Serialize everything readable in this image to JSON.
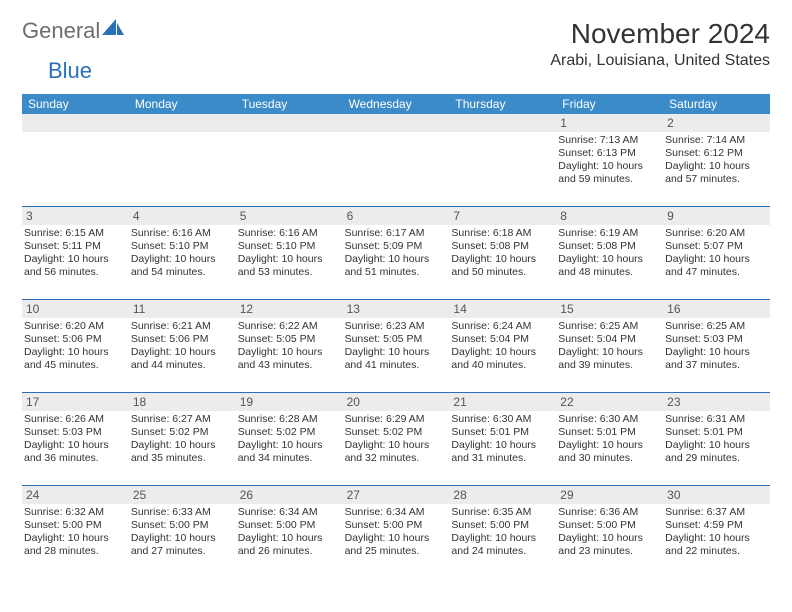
{
  "logo": {
    "text1": "General",
    "text2": "Blue"
  },
  "title": "November 2024",
  "location": "Arabi, Louisiana, United States",
  "colors": {
    "header_bg": "#3b8bc9",
    "header_text": "#ffffff",
    "week_border": "#2a70b8",
    "daynum_bg": "#ececec",
    "body_text": "#333333",
    "logo_gray": "#6e6e6e",
    "logo_blue": "#2a70b8",
    "page_bg": "#ffffff"
  },
  "weekdays": [
    "Sunday",
    "Monday",
    "Tuesday",
    "Wednesday",
    "Thursday",
    "Friday",
    "Saturday"
  ],
  "weeks": [
    [
      {
        "n": "",
        "sunrise": "",
        "sunset": "",
        "day1": "",
        "day2": ""
      },
      {
        "n": "",
        "sunrise": "",
        "sunset": "",
        "day1": "",
        "day2": ""
      },
      {
        "n": "",
        "sunrise": "",
        "sunset": "",
        "day1": "",
        "day2": ""
      },
      {
        "n": "",
        "sunrise": "",
        "sunset": "",
        "day1": "",
        "day2": ""
      },
      {
        "n": "",
        "sunrise": "",
        "sunset": "",
        "day1": "",
        "day2": ""
      },
      {
        "n": "1",
        "sunrise": "Sunrise: 7:13 AM",
        "sunset": "Sunset: 6:13 PM",
        "day1": "Daylight: 10 hours",
        "day2": "and 59 minutes."
      },
      {
        "n": "2",
        "sunrise": "Sunrise: 7:14 AM",
        "sunset": "Sunset: 6:12 PM",
        "day1": "Daylight: 10 hours",
        "day2": "and 57 minutes."
      }
    ],
    [
      {
        "n": "3",
        "sunrise": "Sunrise: 6:15 AM",
        "sunset": "Sunset: 5:11 PM",
        "day1": "Daylight: 10 hours",
        "day2": "and 56 minutes."
      },
      {
        "n": "4",
        "sunrise": "Sunrise: 6:16 AM",
        "sunset": "Sunset: 5:10 PM",
        "day1": "Daylight: 10 hours",
        "day2": "and 54 minutes."
      },
      {
        "n": "5",
        "sunrise": "Sunrise: 6:16 AM",
        "sunset": "Sunset: 5:10 PM",
        "day1": "Daylight: 10 hours",
        "day2": "and 53 minutes."
      },
      {
        "n": "6",
        "sunrise": "Sunrise: 6:17 AM",
        "sunset": "Sunset: 5:09 PM",
        "day1": "Daylight: 10 hours",
        "day2": "and 51 minutes."
      },
      {
        "n": "7",
        "sunrise": "Sunrise: 6:18 AM",
        "sunset": "Sunset: 5:08 PM",
        "day1": "Daylight: 10 hours",
        "day2": "and 50 minutes."
      },
      {
        "n": "8",
        "sunrise": "Sunrise: 6:19 AM",
        "sunset": "Sunset: 5:08 PM",
        "day1": "Daylight: 10 hours",
        "day2": "and 48 minutes."
      },
      {
        "n": "9",
        "sunrise": "Sunrise: 6:20 AM",
        "sunset": "Sunset: 5:07 PM",
        "day1": "Daylight: 10 hours",
        "day2": "and 47 minutes."
      }
    ],
    [
      {
        "n": "10",
        "sunrise": "Sunrise: 6:20 AM",
        "sunset": "Sunset: 5:06 PM",
        "day1": "Daylight: 10 hours",
        "day2": "and 45 minutes."
      },
      {
        "n": "11",
        "sunrise": "Sunrise: 6:21 AM",
        "sunset": "Sunset: 5:06 PM",
        "day1": "Daylight: 10 hours",
        "day2": "and 44 minutes."
      },
      {
        "n": "12",
        "sunrise": "Sunrise: 6:22 AM",
        "sunset": "Sunset: 5:05 PM",
        "day1": "Daylight: 10 hours",
        "day2": "and 43 minutes."
      },
      {
        "n": "13",
        "sunrise": "Sunrise: 6:23 AM",
        "sunset": "Sunset: 5:05 PM",
        "day1": "Daylight: 10 hours",
        "day2": "and 41 minutes."
      },
      {
        "n": "14",
        "sunrise": "Sunrise: 6:24 AM",
        "sunset": "Sunset: 5:04 PM",
        "day1": "Daylight: 10 hours",
        "day2": "and 40 minutes."
      },
      {
        "n": "15",
        "sunrise": "Sunrise: 6:25 AM",
        "sunset": "Sunset: 5:04 PM",
        "day1": "Daylight: 10 hours",
        "day2": "and 39 minutes."
      },
      {
        "n": "16",
        "sunrise": "Sunrise: 6:25 AM",
        "sunset": "Sunset: 5:03 PM",
        "day1": "Daylight: 10 hours",
        "day2": "and 37 minutes."
      }
    ],
    [
      {
        "n": "17",
        "sunrise": "Sunrise: 6:26 AM",
        "sunset": "Sunset: 5:03 PM",
        "day1": "Daylight: 10 hours",
        "day2": "and 36 minutes."
      },
      {
        "n": "18",
        "sunrise": "Sunrise: 6:27 AM",
        "sunset": "Sunset: 5:02 PM",
        "day1": "Daylight: 10 hours",
        "day2": "and 35 minutes."
      },
      {
        "n": "19",
        "sunrise": "Sunrise: 6:28 AM",
        "sunset": "Sunset: 5:02 PM",
        "day1": "Daylight: 10 hours",
        "day2": "and 34 minutes."
      },
      {
        "n": "20",
        "sunrise": "Sunrise: 6:29 AM",
        "sunset": "Sunset: 5:02 PM",
        "day1": "Daylight: 10 hours",
        "day2": "and 32 minutes."
      },
      {
        "n": "21",
        "sunrise": "Sunrise: 6:30 AM",
        "sunset": "Sunset: 5:01 PM",
        "day1": "Daylight: 10 hours",
        "day2": "and 31 minutes."
      },
      {
        "n": "22",
        "sunrise": "Sunrise: 6:30 AM",
        "sunset": "Sunset: 5:01 PM",
        "day1": "Daylight: 10 hours",
        "day2": "and 30 minutes."
      },
      {
        "n": "23",
        "sunrise": "Sunrise: 6:31 AM",
        "sunset": "Sunset: 5:01 PM",
        "day1": "Daylight: 10 hours",
        "day2": "and 29 minutes."
      }
    ],
    [
      {
        "n": "24",
        "sunrise": "Sunrise: 6:32 AM",
        "sunset": "Sunset: 5:00 PM",
        "day1": "Daylight: 10 hours",
        "day2": "and 28 minutes."
      },
      {
        "n": "25",
        "sunrise": "Sunrise: 6:33 AM",
        "sunset": "Sunset: 5:00 PM",
        "day1": "Daylight: 10 hours",
        "day2": "and 27 minutes."
      },
      {
        "n": "26",
        "sunrise": "Sunrise: 6:34 AM",
        "sunset": "Sunset: 5:00 PM",
        "day1": "Daylight: 10 hours",
        "day2": "and 26 minutes."
      },
      {
        "n": "27",
        "sunrise": "Sunrise: 6:34 AM",
        "sunset": "Sunset: 5:00 PM",
        "day1": "Daylight: 10 hours",
        "day2": "and 25 minutes."
      },
      {
        "n": "28",
        "sunrise": "Sunrise: 6:35 AM",
        "sunset": "Sunset: 5:00 PM",
        "day1": "Daylight: 10 hours",
        "day2": "and 24 minutes."
      },
      {
        "n": "29",
        "sunrise": "Sunrise: 6:36 AM",
        "sunset": "Sunset: 5:00 PM",
        "day1": "Daylight: 10 hours",
        "day2": "and 23 minutes."
      },
      {
        "n": "30",
        "sunrise": "Sunrise: 6:37 AM",
        "sunset": "Sunset: 4:59 PM",
        "day1": "Daylight: 10 hours",
        "day2": "and 22 minutes."
      }
    ]
  ]
}
